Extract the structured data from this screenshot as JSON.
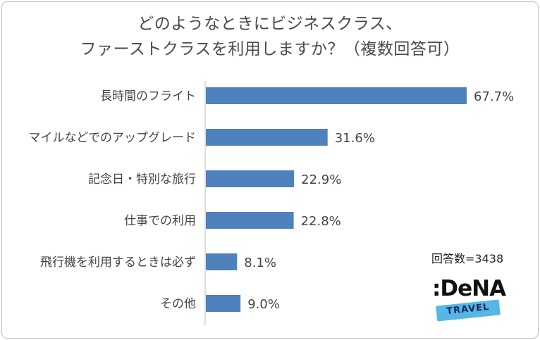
{
  "title_line1": "どのようなときにビジネスクラス、",
  "title_line2": "ファーストクラスを利用しますか？（複数回答可）",
  "response_count": "回答数=3438",
  "logo": {
    "name": ":DeNA",
    "sub": "TRAVEL",
    "band_color": "#56b7e6"
  },
  "bar_color": "#4f81bd",
  "chart_data": {
    "type": "bar",
    "orientation": "horizontal",
    "categories": [
      "長時間のフライト",
      "マイルなどでのアップグレード",
      "記念日・特別な旅行",
      "仕事での利用",
      "飛行機を利用するときは必ず",
      "その他"
    ],
    "values": [
      67.7,
      31.6,
      22.9,
      22.8,
      8.1,
      9.0
    ],
    "value_labels": [
      "67.7%",
      "31.6%",
      "22.9%",
      "22.8%",
      "8.1%",
      "9.0%"
    ],
    "unit": "%",
    "xlim": [
      0,
      70
    ],
    "grid": false,
    "title": "どのようなときにビジネスクラス、ファーストクラスを利用しますか？（複数回答可）"
  }
}
